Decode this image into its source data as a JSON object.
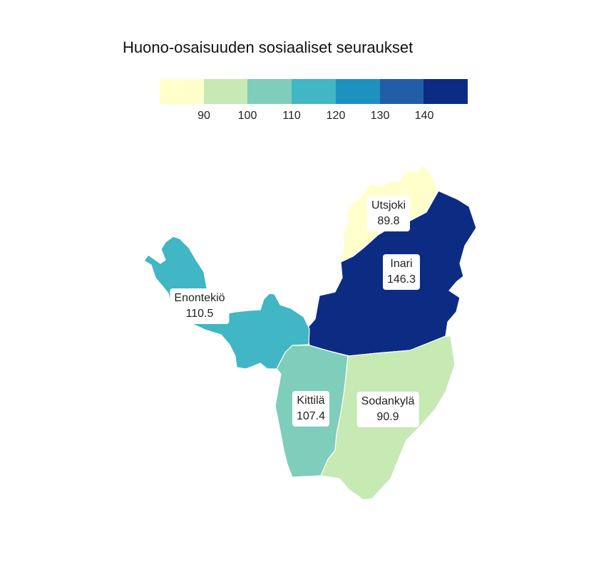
{
  "title": "Huono-osaisuuden sosiaaliset seuraukset",
  "legend": {
    "colors": [
      "#ffffcc",
      "#c7e9b4",
      "#7fcdbb",
      "#41b6c4",
      "#1d91c0",
      "#225ea8",
      "#0c2c84"
    ],
    "ticks": [
      "90",
      "100",
      "110",
      "120",
      "130",
      "140"
    ]
  },
  "regions": {
    "utsjoki": {
      "name": "Utsjoki",
      "value": "89.8",
      "color": "#ffffcc"
    },
    "inari": {
      "name": "Inari",
      "value": "146.3",
      "color": "#0c2c84"
    },
    "enontekio": {
      "name": "Enontekiö",
      "value": "110.5",
      "color": "#41b6c4"
    },
    "kittila": {
      "name": "Kittilä",
      "value": "107.4",
      "color": "#7fcdbb"
    },
    "sodankyla": {
      "name": "Sodankylä",
      "value": "90.9",
      "color": "#c7e9b4"
    }
  }
}
